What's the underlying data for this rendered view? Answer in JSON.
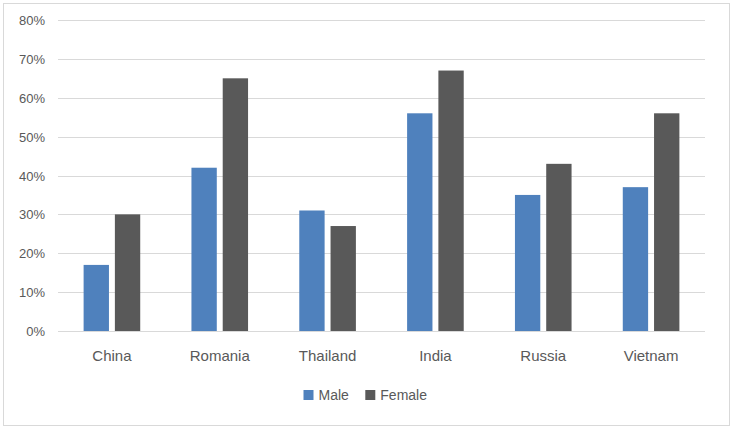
{
  "chart_data": {
    "type": "bar",
    "categories": [
      "China",
      "Romania",
      "Thailand",
      "India",
      "Russia",
      "Vietnam"
    ],
    "series": [
      {
        "name": "Male",
        "color": "#4f81bd",
        "values": [
          17,
          42,
          31,
          56,
          35,
          37
        ]
      },
      {
        "name": "Female",
        "color": "#595959",
        "values": [
          30,
          65,
          27,
          67,
          43,
          56
        ]
      }
    ],
    "ylim": [
      0,
      80
    ],
    "yticks": [
      {
        "value": 0,
        "label": "0%"
      },
      {
        "value": 10,
        "label": "10%"
      },
      {
        "value": 20,
        "label": "20%"
      },
      {
        "value": 30,
        "label": "30%"
      },
      {
        "value": 40,
        "label": "40%"
      },
      {
        "value": 50,
        "label": "50%"
      },
      {
        "value": 60,
        "label": "60%"
      },
      {
        "value": 70,
        "label": "70%"
      },
      {
        "value": 80,
        "label": "80%"
      }
    ],
    "grid": true,
    "legend": "bottom"
  }
}
